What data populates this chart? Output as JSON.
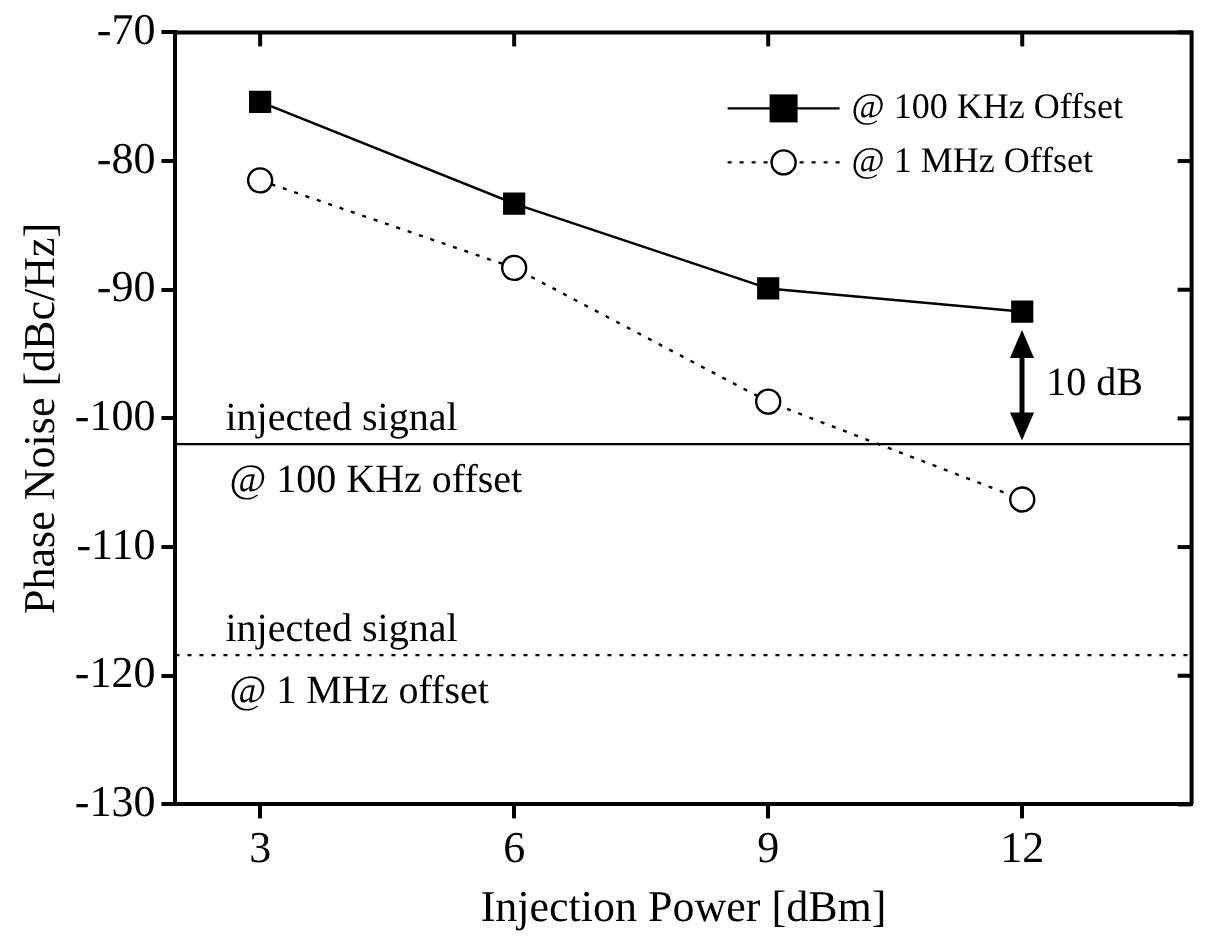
{
  "chart_data": {
    "type": "line",
    "xlabel": "Injection Power [dBm]",
    "ylabel": "Phase Noise [dBc/Hz]",
    "x": [
      3,
      6,
      9,
      12
    ],
    "series": [
      {
        "name": "@ 100 KHz Offset",
        "color": "#000000",
        "values": [
          -75.4,
          -83.3,
          -89.9,
          -91.7
        ],
        "marker": "square",
        "line_style": "solid"
      },
      {
        "name": "@ 1 MHz Offset",
        "color": "#000000",
        "values": [
          -81.5,
          -88.3,
          -98.7,
          -106.3
        ],
        "marker": "circle",
        "line_style": "dotted"
      }
    ],
    "xlim": [
      2,
      14
    ],
    "xticks": [
      3,
      6,
      9,
      12
    ],
    "ylim": [
      -130,
      -70
    ],
    "yticks": [
      -130,
      -120,
      -110,
      -100,
      -90,
      -80,
      -70
    ],
    "ref_lines": [
      {
        "axis": "y",
        "value": -102,
        "label": "injected signal\n@ 100 KHz offset",
        "color": "#000000",
        "line_style": "solid"
      },
      {
        "axis": "y",
        "value": -118.4,
        "label": "injected signal\n@ 1 MHz offset",
        "color": "#000000",
        "line_style": "dotted"
      }
    ],
    "annotations": [
      "10 dB"
    ],
    "legend": "top right",
    "grid": false
  }
}
